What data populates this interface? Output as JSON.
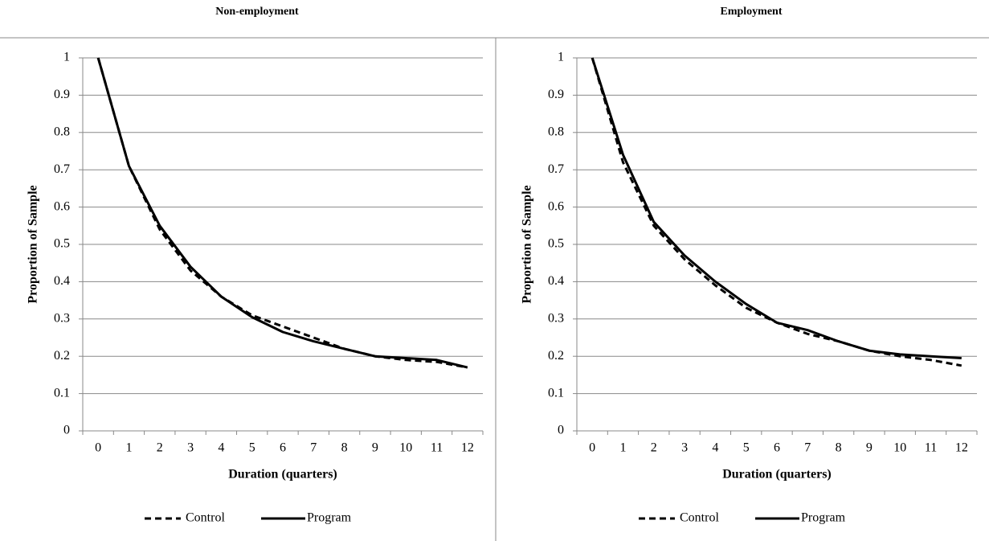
{
  "chart_data": [
    {
      "type": "line",
      "title": "Non-employment",
      "x_label": "Duration (quarters)",
      "y_label": "Proportion of Sample",
      "categories": [
        "0",
        "1",
        "2",
        "3",
        "4",
        "5",
        "6",
        "7",
        "8",
        "9",
        "10",
        "11",
        "12"
      ],
      "ylim": [
        0,
        1
      ],
      "yticks": [
        0,
        0.1,
        0.2,
        0.3,
        0.4,
        0.5,
        0.6,
        0.7,
        0.8,
        0.9,
        1
      ],
      "grid": true,
      "legend": "bottom",
      "series": [
        {
          "name": "Control",
          "color": "#000000",
          "line_style": "dashed",
          "values": [
            1,
            0.71,
            0.54,
            0.43,
            0.36,
            0.31,
            0.28,
            0.25,
            0.22,
            0.2,
            0.19,
            0.185,
            0.17
          ]
        },
        {
          "name": "Program",
          "color": "#000000",
          "line_style": "solid",
          "values": [
            1,
            0.71,
            0.55,
            0.44,
            0.36,
            0.305,
            0.265,
            0.24,
            0.22,
            0.2,
            0.195,
            0.19,
            0.17
          ]
        }
      ]
    },
    {
      "type": "line",
      "title": "Employment",
      "x_label": "Duration (quarters)",
      "y_label": "Proportion of Sample",
      "categories": [
        "0",
        "1",
        "2",
        "3",
        "4",
        "5",
        "6",
        "7",
        "8",
        "9",
        "10",
        "11",
        "12"
      ],
      "ylim": [
        0,
        1
      ],
      "yticks": [
        0,
        0.1,
        0.2,
        0.3,
        0.4,
        0.5,
        0.6,
        0.7,
        0.8,
        0.9,
        1
      ],
      "grid": true,
      "legend": "bottom",
      "series": [
        {
          "name": "Control",
          "color": "#000000",
          "line_style": "dashed",
          "values": [
            1,
            0.72,
            0.55,
            0.46,
            0.39,
            0.33,
            0.29,
            0.26,
            0.24,
            0.215,
            0.2,
            0.19,
            0.175
          ]
        },
        {
          "name": "Program",
          "color": "#000000",
          "line_style": "solid",
          "values": [
            1,
            0.74,
            0.56,
            0.47,
            0.4,
            0.34,
            0.29,
            0.27,
            0.24,
            0.215,
            0.205,
            0.2,
            0.195
          ]
        }
      ]
    }
  ]
}
